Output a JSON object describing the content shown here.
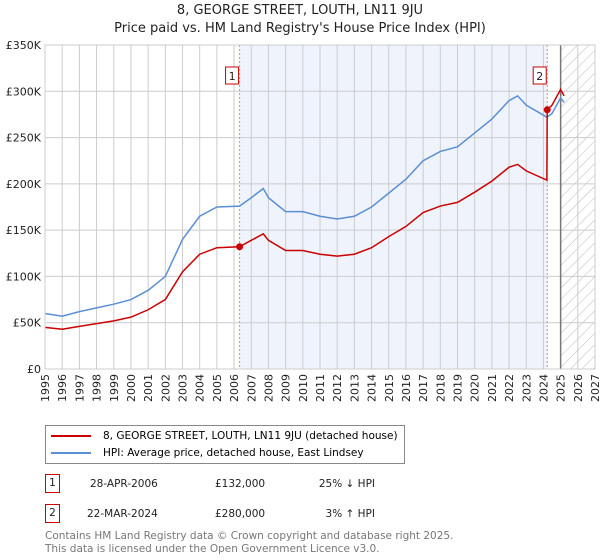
{
  "chart_data": {
    "type": "line",
    "title": "8, GEORGE STREET, LOUTH, LN11 9JU",
    "subtitle": "Price paid vs. HM Land Registry's House Price Index (HPI)",
    "xlim": [
      1995,
      2027
    ],
    "ylim": [
      0,
      350000
    ],
    "yticks": [
      {
        "v": 0,
        "label": "£0"
      },
      {
        "v": 50000,
        "label": "£50K"
      },
      {
        "v": 100000,
        "label": "£100K"
      },
      {
        "v": 150000,
        "label": "£150K"
      },
      {
        "v": 200000,
        "label": "£200K"
      },
      {
        "v": 250000,
        "label": "£250K"
      },
      {
        "v": 300000,
        "label": "£300K"
      },
      {
        "v": 350000,
        "label": "£350K"
      }
    ],
    "xticks": [
      "1995",
      "1996",
      "1997",
      "1998",
      "1999",
      "2000",
      "2001",
      "2002",
      "2003",
      "2004",
      "2005",
      "2006",
      "2007",
      "2008",
      "2009",
      "2010",
      "2011",
      "2012",
      "2013",
      "2014",
      "2015",
      "2016",
      "2017",
      "2018",
      "2019",
      "2020",
      "2021",
      "2022",
      "2023",
      "2024",
      "2025",
      "2026",
      "2027"
    ],
    "grid": true,
    "shaded_range": [
      2006.32,
      2024.22
    ],
    "forecast_hatch_from": 2025,
    "series": [
      {
        "name": "8, GEORGE STREET, LOUTH, LN11 9JU (detached house)",
        "color": "#cc0000",
        "x": [
          1995,
          1996,
          1997,
          1998,
          1999,
          2000,
          2001,
          2002,
          2003,
          2004,
          2005,
          2006.32,
          2007,
          2007.7,
          2008,
          2009,
          2010,
          2011,
          2012,
          2013,
          2014,
          2015,
          2016,
          2017,
          2018,
          2019,
          2020,
          2021,
          2022,
          2022.5,
          2023,
          2024.2,
          2024.22,
          2024.5,
          2025,
          2025.2
        ],
        "y": [
          45000,
          43000,
          46000,
          49000,
          52000,
          56000,
          64000,
          75000,
          105000,
          124000,
          131000,
          132000,
          139000,
          146000,
          139000,
          128000,
          128000,
          124000,
          122000,
          124000,
          131000,
          143000,
          154000,
          169000,
          176000,
          180000,
          191000,
          203000,
          218000,
          221000,
          214000,
          204000,
          280000,
          285000,
          302000,
          295000
        ]
      },
      {
        "name": "HPI: Average price, detached house, East Lindsey",
        "color": "#5b8fd4",
        "x": [
          1995,
          1996,
          1997,
          1998,
          1999,
          2000,
          2001,
          2002,
          2003,
          2004,
          2005,
          2006.32,
          2007,
          2007.7,
          2008,
          2009,
          2010,
          2011,
          2012,
          2013,
          2014,
          2015,
          2016,
          2017,
          2018,
          2019,
          2020,
          2021,
          2022,
          2022.5,
          2023,
          2024.2,
          2024.5,
          2025,
          2025.2
        ],
        "y": [
          60000,
          57000,
          62000,
          66000,
          70000,
          75000,
          85000,
          100000,
          140000,
          165000,
          175000,
          176000,
          185000,
          195000,
          185000,
          170000,
          170000,
          165000,
          162000,
          165000,
          175000,
          190000,
          205000,
          225000,
          235000,
          240000,
          255000,
          270000,
          290000,
          295000,
          285000,
          272000,
          276000,
          293000,
          288000
        ]
      }
    ],
    "annotations": [
      {
        "label": "1",
        "x": 2006.32,
        "y": 132000
      },
      {
        "label": "2",
        "x": 2024.22,
        "y": 280000
      }
    ]
  },
  "legend": {
    "items": [
      "8, GEORGE STREET, LOUTH, LN11 9JU (detached house)",
      "HPI: Average price, detached house, East Lindsey"
    ]
  },
  "transactions": [
    {
      "num": "1",
      "date": "28-APR-2006",
      "price": "£132,000",
      "hpi": "25% ↓ HPI"
    },
    {
      "num": "2",
      "date": "22-MAR-2024",
      "price": "£280,000",
      "hpi": "3% ↑ HPI"
    }
  ],
  "footer": {
    "line1": "Contains HM Land Registry data © Crown copyright and database right 2025.",
    "line2": "This data is licensed under the Open Government Licence v3.0."
  }
}
